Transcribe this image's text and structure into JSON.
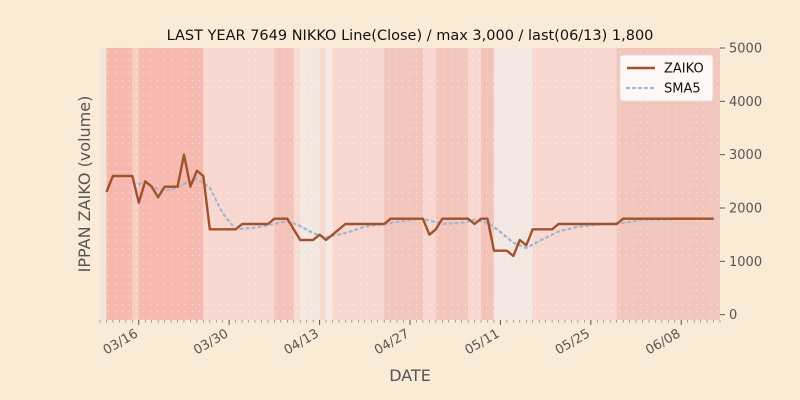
{
  "chart_data": {
    "type": "line",
    "title": "LAST YEAR 7649 NIKKO Line(Close) / max 3,000 / last(06/13) 1,800",
    "xlabel": "DATE",
    "ylabel": "IPPAN ZAIKO (volume)",
    "ylim": [
      -100,
      5000
    ],
    "y_axis_side": "right",
    "yticks": [
      0,
      1000,
      2000,
      3000,
      4000,
      5000
    ],
    "x_start": "2023-03-10",
    "x_end": "2023-06-14",
    "xticks": [
      {
        "date": "2023-03-16",
        "label": "03/16"
      },
      {
        "date": "2023-03-30",
        "label": "03/30"
      },
      {
        "date": "2023-04-13",
        "label": "04/13"
      },
      {
        "date": "2023-04-27",
        "label": "04/27"
      },
      {
        "date": "2023-05-11",
        "label": "05/11"
      },
      {
        "date": "2023-05-25",
        "label": "05/25"
      },
      {
        "date": "2023-06-08",
        "label": "06/08"
      }
    ],
    "legend_position": "top-right",
    "series": [
      {
        "name": "ZAIKO",
        "color": "#A0522D",
        "style": "solid",
        "points": [
          [
            "2023-03-11",
            2300
          ],
          [
            "2023-03-12",
            2600
          ],
          [
            "2023-03-15",
            2600
          ],
          [
            "2023-03-16",
            2100
          ],
          [
            "2023-03-17",
            2500
          ],
          [
            "2023-03-18",
            2400
          ],
          [
            "2023-03-19",
            2200
          ],
          [
            "2023-03-20",
            2400
          ],
          [
            "2023-03-22",
            2400
          ],
          [
            "2023-03-23",
            3000
          ],
          [
            "2023-03-24",
            2400
          ],
          [
            "2023-03-25",
            2700
          ],
          [
            "2023-03-26",
            2600
          ],
          [
            "2023-03-27",
            1600
          ],
          [
            "2023-03-31",
            1600
          ],
          [
            "2023-04-01",
            1700
          ],
          [
            "2023-04-05",
            1700
          ],
          [
            "2023-04-06",
            1800
          ],
          [
            "2023-04-08",
            1800
          ],
          [
            "2023-04-10",
            1400
          ],
          [
            "2023-04-12",
            1400
          ],
          [
            "2023-04-13",
            1500
          ],
          [
            "2023-04-14",
            1400
          ],
          [
            "2023-04-15",
            1500
          ],
          [
            "2023-04-17",
            1700
          ],
          [
            "2023-04-23",
            1700
          ],
          [
            "2023-04-24",
            1800
          ],
          [
            "2023-04-29",
            1800
          ],
          [
            "2023-04-30",
            1500
          ],
          [
            "2023-05-01",
            1600
          ],
          [
            "2023-05-02",
            1800
          ],
          [
            "2023-05-06",
            1800
          ],
          [
            "2023-05-07",
            1700
          ],
          [
            "2023-05-08",
            1800
          ],
          [
            "2023-05-09",
            1800
          ],
          [
            "2023-05-10",
            1200
          ],
          [
            "2023-05-12",
            1200
          ],
          [
            "2023-05-13",
            1100
          ],
          [
            "2023-05-14",
            1400
          ],
          [
            "2023-05-15",
            1300
          ],
          [
            "2023-05-16",
            1600
          ],
          [
            "2023-05-19",
            1600
          ],
          [
            "2023-05-20",
            1700
          ],
          [
            "2023-05-29",
            1700
          ],
          [
            "2023-05-30",
            1800
          ],
          [
            "2023-06-13",
            1800
          ]
        ]
      },
      {
        "name": "SMA5",
        "color": "#9FB6CD",
        "style": "dotted",
        "points": [
          [
            "2023-03-16",
            2450
          ],
          [
            "2023-03-17",
            2470
          ],
          [
            "2023-03-19",
            2350
          ],
          [
            "2023-03-21",
            2340
          ],
          [
            "2023-03-23",
            2450
          ],
          [
            "2023-03-25",
            2550
          ],
          [
            "2023-03-27",
            2380
          ],
          [
            "2023-03-29",
            1900
          ],
          [
            "2023-03-31",
            1600
          ],
          [
            "2023-04-03",
            1630
          ],
          [
            "2023-04-06",
            1700
          ],
          [
            "2023-04-08",
            1760
          ],
          [
            "2023-04-10",
            1660
          ],
          [
            "2023-04-12",
            1530
          ],
          [
            "2023-04-14",
            1450
          ],
          [
            "2023-04-17",
            1530
          ],
          [
            "2023-04-20",
            1650
          ],
          [
            "2023-04-23",
            1700
          ],
          [
            "2023-04-26",
            1760
          ],
          [
            "2023-04-29",
            1800
          ],
          [
            "2023-05-02",
            1700
          ],
          [
            "2023-05-05",
            1720
          ],
          [
            "2023-05-07",
            1780
          ],
          [
            "2023-05-09",
            1730
          ],
          [
            "2023-05-11",
            1550
          ],
          [
            "2023-05-13",
            1350
          ],
          [
            "2023-05-15",
            1250
          ],
          [
            "2023-05-17",
            1380
          ],
          [
            "2023-05-20",
            1560
          ],
          [
            "2023-05-23",
            1650
          ],
          [
            "2023-05-27",
            1700
          ],
          [
            "2023-05-30",
            1720
          ],
          [
            "2023-06-02",
            1780
          ],
          [
            "2023-06-13",
            1800
          ]
        ]
      }
    ],
    "background_bands": [
      {
        "start": "2023-03-10",
        "end": "2023-03-11",
        "color": "#F3E4DC"
      },
      {
        "start": "2023-03-11",
        "end": "2023-03-15",
        "color": "#F6B7AE"
      },
      {
        "start": "2023-03-15",
        "end": "2023-03-16",
        "color": "#F7CEC4"
      },
      {
        "start": "2023-03-16",
        "end": "2023-03-26",
        "color": "#F6B8AF"
      },
      {
        "start": "2023-03-26",
        "end": "2023-04-06",
        "color": "#F7D7CF"
      },
      {
        "start": "2023-04-06",
        "end": "2023-04-09",
        "color": "#F3C2B8"
      },
      {
        "start": "2023-04-09",
        "end": "2023-04-10",
        "color": "#F7DAD2"
      },
      {
        "start": "2023-04-10",
        "end": "2023-04-13",
        "color": "#F3E7E1"
      },
      {
        "start": "2023-04-13",
        "end": "2023-04-14",
        "color": "#F7DAD2"
      },
      {
        "start": "2023-04-14",
        "end": "2023-04-15",
        "color": "#F3E9E3"
      },
      {
        "start": "2023-04-15",
        "end": "2023-04-23",
        "color": "#F7D7CF"
      },
      {
        "start": "2023-04-23",
        "end": "2023-04-29",
        "color": "#F3C6BC"
      },
      {
        "start": "2023-04-29",
        "end": "2023-05-01",
        "color": "#F7D7CF"
      },
      {
        "start": "2023-05-01",
        "end": "2023-05-06",
        "color": "#F3C6BC"
      },
      {
        "start": "2023-05-06",
        "end": "2023-05-08",
        "color": "#F7D7CF"
      },
      {
        "start": "2023-05-08",
        "end": "2023-05-10",
        "color": "#F3C2B8"
      },
      {
        "start": "2023-05-10",
        "end": "2023-05-16",
        "color": "#F3E7E1"
      },
      {
        "start": "2023-05-16",
        "end": "2023-05-29",
        "color": "#F7D7CF"
      },
      {
        "start": "2023-05-29",
        "end": "2023-06-14",
        "color": "#F3C6BC"
      },
      {
        "start": "2023-06-14",
        "end": "2023-06-15",
        "color": "#F3E4DC"
      }
    ]
  }
}
